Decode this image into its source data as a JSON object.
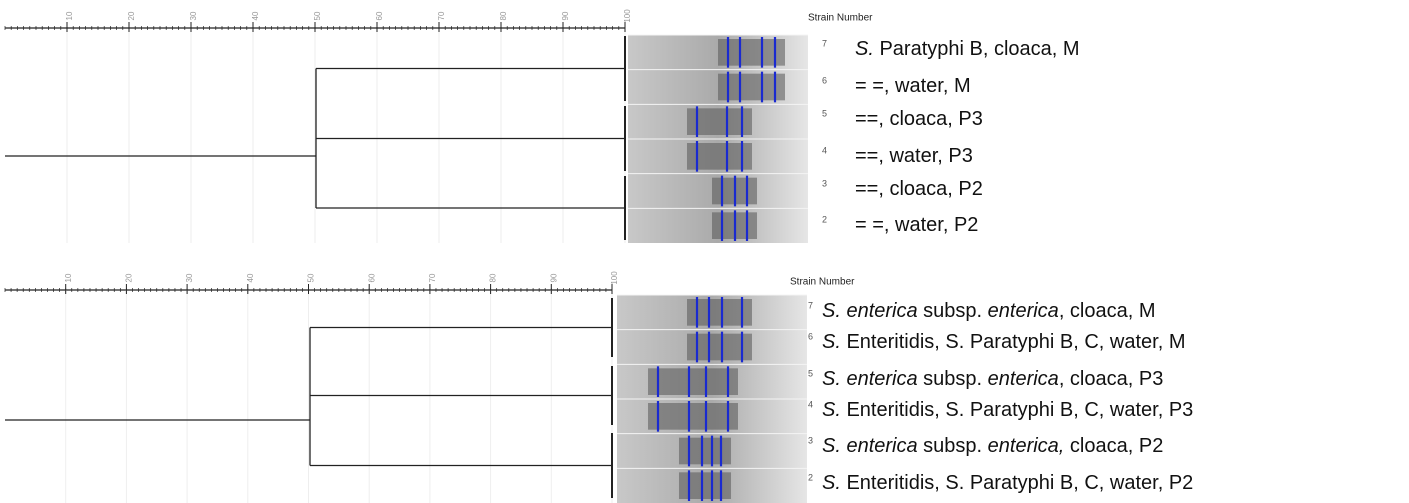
{
  "panels": [
    {
      "scale": [
        10,
        20,
        30,
        40,
        50,
        60,
        70,
        80,
        90,
        100
      ],
      "header": "Strain Number",
      "rows": [
        {
          "number": 7,
          "label": [
            {
              "text": "S.",
              "style": "italic"
            },
            {
              "text": " Paratyphi B, cloaca, M"
            }
          ]
        },
        {
          "number": 6,
          "label": [
            {
              "text": "= =, water, M"
            }
          ]
        },
        {
          "number": 5,
          "label": [
            {
              "text": "==, cloaca, P3"
            }
          ]
        },
        {
          "number": 4,
          "label": [
            {
              "text": "==, water, P3"
            }
          ]
        },
        {
          "number": 3,
          "label": [
            {
              "text": "==, cloaca, P2"
            }
          ]
        },
        {
          "number": 2,
          "label": [
            {
              "text": "= =, water, P2"
            }
          ]
        }
      ]
    },
    {
      "scale": [
        10,
        20,
        30,
        40,
        50,
        60,
        70,
        80,
        90,
        100
      ],
      "header": "Strain Number",
      "rows": [
        {
          "number": 7,
          "label": [
            {
              "text": "S. enterica",
              "style": "italic"
            },
            {
              "text": " subsp. "
            },
            {
              "text": "enterica",
              "style": "italic"
            },
            {
              "text": ", cloaca, M"
            }
          ]
        },
        {
          "number": 6,
          "label": [
            {
              "text": "S.",
              "style": "italic"
            },
            {
              "text": " Enteritidis, S. Paratyphi B, C, water, M"
            }
          ]
        },
        {
          "number": 5,
          "label": [
            {
              "text": "S. enterica",
              "style": "italic"
            },
            {
              "text": " subsp. "
            },
            {
              "text": "enterica",
              "style": "italic"
            },
            {
              "text": ", cloaca, P3"
            }
          ]
        },
        {
          "number": 4,
          "label": [
            {
              "text": "S.",
              "style": "italic"
            },
            {
              "text": " Enteritidis, S. Paratyphi B, C, water, P3"
            }
          ]
        },
        {
          "number": 3,
          "label": [
            {
              "text": "S. enterica",
              "style": "italic"
            },
            {
              "text": " subsp. "
            },
            {
              "text": "enterica,",
              "style": "italic"
            },
            {
              "text": " cloaca, P2"
            }
          ]
        },
        {
          "number": 2,
          "label": [
            {
              "text": "S.",
              "style": "italic"
            },
            {
              "text": " Enteritidis, S. Paratyphi B, C, water, P2"
            }
          ]
        }
      ]
    }
  ]
}
